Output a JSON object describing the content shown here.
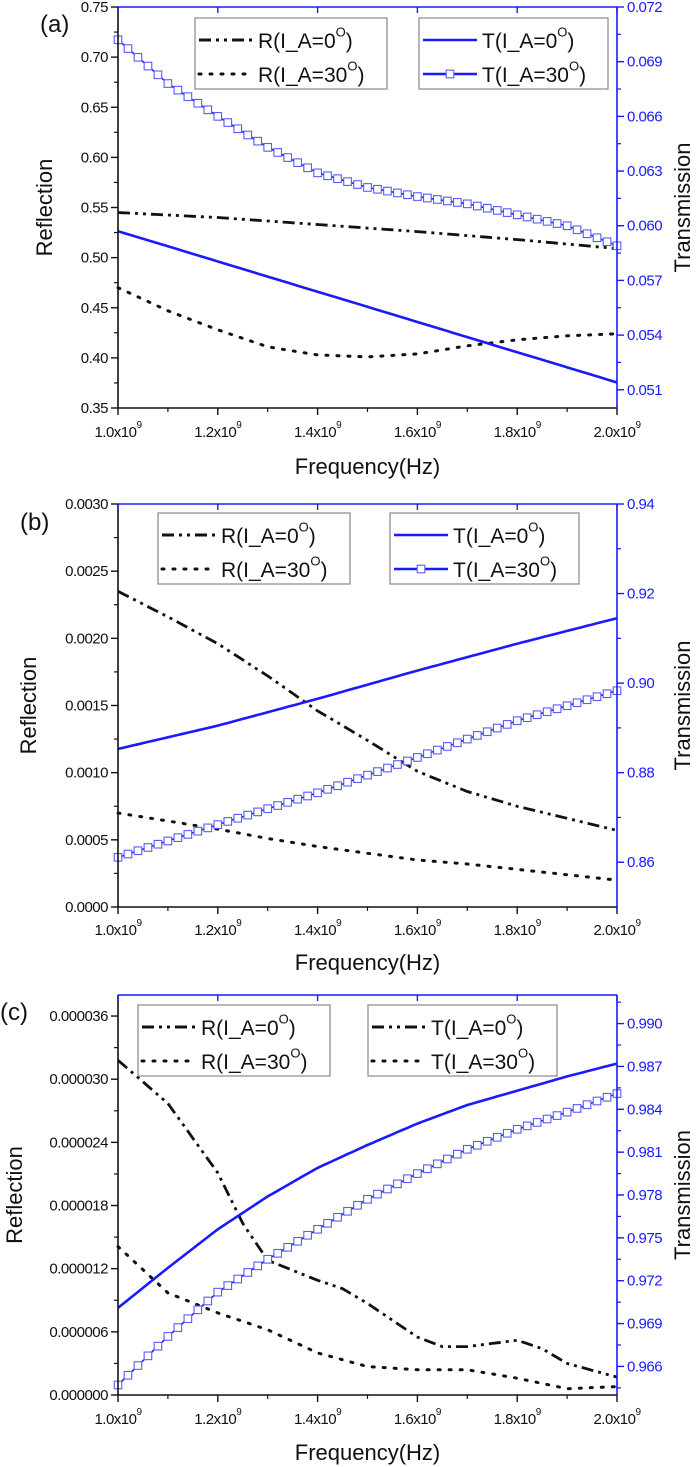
{
  "chart_data": [
    {
      "type": "line",
      "panel_label": "(a)",
      "xlabel": "Frequency(Hz)",
      "ylabel": "Reflection",
      "y2label": "Transmission",
      "xlim": [
        1.0,
        2.0
      ],
      "ylim": [
        0.35,
        0.75
      ],
      "y2lim": [
        0.05,
        0.072
      ],
      "xticks": [
        1.0,
        1.2,
        1.4,
        1.6,
        1.8,
        2.0
      ],
      "xtick_labels": [
        "1.0x10^9",
        "1.2x10^9",
        "1.4x10^9",
        "1.6x10^9",
        "1.8x10^9",
        "2.0x10^9"
      ],
      "yticks": [
        0.35,
        0.4,
        0.45,
        0.5,
        0.55,
        0.6,
        0.65,
        0.7,
        0.75
      ],
      "ytick_labels": [
        "0.35",
        "0.40",
        "0.45",
        "0.50",
        "0.55",
        "0.60",
        "0.65",
        "0.70",
        "0.75"
      ],
      "y2ticks": [
        0.051,
        0.054,
        0.057,
        0.06,
        0.063,
        0.066,
        0.069,
        0.072
      ],
      "y2tick_labels": [
        "0.051",
        "0.054",
        "0.057",
        "0.060",
        "0.063",
        "0.066",
        "0.069",
        "0.072"
      ],
      "x_unit_note": "x values in units of 1x10^9 Hz",
      "legends": [
        {
          "placement": "top-center",
          "entries": [
            {
              "label": "R(I_A=0^O)",
              "style": "dashdotdot"
            },
            {
              "label": "R(I_A=30^O)",
              "style": "dot"
            }
          ]
        },
        {
          "placement": "top-right",
          "entries": [
            {
              "label": "T(I_A=0^O)",
              "style": "solid-blue"
            },
            {
              "label": "T(I_A=30^O)",
              "style": "square-blue"
            }
          ]
        }
      ],
      "series": [
        {
          "name": "R(I_A=0^O)",
          "axis": "left",
          "style": "dashdotdot",
          "x": [
            1.0,
            1.2,
            1.4,
            1.6,
            1.8,
            2.0
          ],
          "y": [
            0.545,
            0.54,
            0.533,
            0.526,
            0.518,
            0.509
          ]
        },
        {
          "name": "R(I_A=30^O)",
          "axis": "left",
          "style": "dot",
          "x": [
            1.0,
            1.1,
            1.2,
            1.3,
            1.4,
            1.5,
            1.6,
            1.7,
            1.8,
            1.9,
            2.0
          ],
          "y": [
            0.47,
            0.447,
            0.428,
            0.411,
            0.403,
            0.401,
            0.404,
            0.412,
            0.418,
            0.422,
            0.424
          ]
        },
        {
          "name": "T(I_A=0^O)",
          "axis": "right",
          "style": "solid-blue",
          "x": [
            1.0,
            2.0
          ],
          "y": [
            0.0597,
            0.0514
          ]
        },
        {
          "name": "T(I_A=30^O)",
          "axis": "right",
          "style": "square-blue",
          "x": [
            1.0,
            1.1,
            1.2,
            1.3,
            1.4,
            1.5,
            1.6,
            1.7,
            1.8,
            1.9,
            2.0
          ],
          "y": [
            0.0702,
            0.0678,
            0.066,
            0.0643,
            0.0629,
            0.0621,
            0.0616,
            0.0612,
            0.0606,
            0.06,
            0.0589
          ]
        }
      ]
    },
    {
      "type": "line",
      "panel_label": "(b)",
      "xlabel": "Frequency(Hz)",
      "ylabel": "Reflection",
      "y2label": "Transmission",
      "xlim": [
        1.0,
        2.0
      ],
      "ylim": [
        0.0,
        0.003
      ],
      "y2lim": [
        0.85,
        0.94
      ],
      "xticks": [
        1.0,
        1.2,
        1.4,
        1.6,
        1.8,
        2.0
      ],
      "xtick_labels": [
        "1.0x10^9",
        "1.2x10^9",
        "1.4x10^9",
        "1.6x10^9",
        "1.8x10^9",
        "2.0x10^9"
      ],
      "yticks": [
        0.0,
        0.0005,
        0.001,
        0.0015,
        0.002,
        0.0025,
        0.003
      ],
      "ytick_labels": [
        "0.0000",
        "0.0005",
        "0.0010",
        "0.0015",
        "0.0020",
        "0.0025",
        "0.0030"
      ],
      "y2ticks": [
        0.86,
        0.88,
        0.9,
        0.92,
        0.94
      ],
      "y2tick_labels": [
        "0.86",
        "0.88",
        "0.90",
        "0.92",
        "0.94"
      ],
      "legends": [
        {
          "placement": "top-center",
          "entries": [
            {
              "label": "R(I_A=0^O)",
              "style": "dashdotdot"
            },
            {
              "label": "R(I_A=30^O)",
              "style": "dot"
            }
          ]
        },
        {
          "placement": "top-right",
          "entries": [
            {
              "label": "T(I_A=0^O)",
              "style": "solid-blue"
            },
            {
              "label": "T(I_A=30^O)",
              "style": "square-blue"
            }
          ]
        }
      ],
      "series": [
        {
          "name": "R(I_A=0^O)",
          "axis": "left",
          "style": "dashdotdot",
          "x": [
            1.0,
            1.1,
            1.2,
            1.3,
            1.4,
            1.5,
            1.6,
            1.7,
            1.8,
            1.9,
            2.0
          ],
          "y": [
            0.00235,
            0.00216,
            0.00196,
            0.00172,
            0.00146,
            0.00124,
            0.00101,
            0.00086,
            0.00075,
            0.00066,
            0.00057
          ]
        },
        {
          "name": "R(I_A=30^O)",
          "axis": "left",
          "style": "dot",
          "x": [
            1.0,
            1.1,
            1.2,
            1.3,
            1.4,
            1.5,
            1.6,
            1.7,
            1.8,
            1.9,
            2.0
          ],
          "y": [
            0.0007,
            0.00064,
            0.00058,
            0.00051,
            0.00045,
            0.0004,
            0.00035,
            0.00032,
            0.00028,
            0.00024,
            0.0002
          ]
        },
        {
          "name": "T(I_A=0^O)",
          "axis": "right",
          "style": "solid-blue",
          "x": [
            1.0,
            1.2,
            1.4,
            1.6,
            1.8,
            2.0
          ],
          "y": [
            0.8853,
            0.8905,
            0.8965,
            0.9028,
            0.9088,
            0.9145
          ]
        },
        {
          "name": "T(I_A=30^O)",
          "axis": "right",
          "style": "square-blue",
          "x": [
            1.0,
            1.2,
            1.4,
            1.6,
            1.8,
            2.0
          ],
          "y": [
            0.8611,
            0.8684,
            0.8755,
            0.8834,
            0.8916,
            0.8983
          ]
        }
      ]
    },
    {
      "type": "line",
      "panel_label": "(c)",
      "xlabel": "Frequency(Hz)",
      "ylabel": "Reflection",
      "y2label": "Transmission",
      "xlim": [
        1.0,
        2.0
      ],
      "ylim": [
        0.0,
        3.8e-05
      ],
      "y2lim": [
        0.964,
        0.992
      ],
      "xticks": [
        1.0,
        1.2,
        1.4,
        1.6,
        1.8,
        2.0
      ],
      "xtick_labels": [
        "1.0x10^9",
        "1.2x10^9",
        "1.4x10^9",
        "1.6x10^9",
        "1.8x10^9",
        "2.0x10^9"
      ],
      "yticks": [
        0.0,
        6e-06,
        1.2e-05,
        1.8e-05,
        2.4e-05,
        3e-05,
        3.6e-05
      ],
      "ytick_labels": [
        "0.000000",
        "0.000006",
        "0.000012",
        "0.000018",
        "0.000024",
        "0.000030",
        "0.000036"
      ],
      "y2ticks": [
        0.966,
        0.969,
        0.972,
        0.975,
        0.978,
        0.981,
        0.984,
        0.987,
        0.99
      ],
      "y2tick_labels": [
        "0.966",
        "0.969",
        "0.972",
        "0.975",
        "0.978",
        "0.981",
        "0.984",
        "0.987",
        "0.990"
      ],
      "legends": [
        {
          "placement": "top-left",
          "entries": [
            {
              "label": "R(I_A=0^O)",
              "style": "dashdotdot"
            },
            {
              "label": "R(I_A=30^O)",
              "style": "dot"
            }
          ]
        },
        {
          "placement": "top-center",
          "entries": [
            {
              "label": "T(I_A=0^O)",
              "style": "dashdotdot"
            },
            {
              "label": "T(I_A=30^O)",
              "style": "dot"
            }
          ]
        }
      ],
      "series": [
        {
          "name": "R(I_A=0^O)",
          "axis": "left",
          "style": "dashdotdot",
          "x": [
            1.0,
            1.1,
            1.2,
            1.25,
            1.3,
            1.4,
            1.45,
            1.5,
            1.6,
            1.65,
            1.7,
            1.8,
            1.85,
            1.9,
            2.0
          ],
          "y": [
            3.18e-05,
            2.77e-05,
            2.11e-05,
            1.63e-05,
            1.28e-05,
            1.09e-05,
            1.01e-05,
            8.7e-06,
            5.5e-06,
            4.6e-06,
            4.6e-06,
            5.2e-06,
            4.4e-06,
            3e-06,
            1.7e-06
          ]
        },
        {
          "name": "R(I_A=30^O)",
          "axis": "left",
          "style": "dot",
          "x": [
            1.0,
            1.1,
            1.2,
            1.3,
            1.4,
            1.5,
            1.6,
            1.7,
            1.8,
            1.9,
            2.0
          ],
          "y": [
            1.41e-05,
            9.7e-06,
            7.8e-06,
            6.2e-06,
            4e-06,
            2.7e-06,
            2.4e-06,
            2.4e-06,
            1.6e-06,
            6e-07,
            8e-07
          ]
        },
        {
          "name": "T(I_A=0^O)",
          "axis": "right",
          "style": "solid-blue",
          "x": [
            1.0,
            1.1,
            1.2,
            1.3,
            1.4,
            1.5,
            1.6,
            1.7,
            1.8,
            1.9,
            2.0
          ],
          "y": [
            0.9701,
            0.9729,
            0.9756,
            0.9779,
            0.9799,
            0.9815,
            0.983,
            0.9843,
            0.9853,
            0.9863,
            0.9872
          ]
        },
        {
          "name": "T(I_A=30^O)",
          "axis": "right",
          "style": "square-blue",
          "x": [
            1.0,
            1.1,
            1.2,
            1.3,
            1.4,
            1.5,
            1.6,
            1.7,
            1.8,
            1.9,
            2.0
          ],
          "y": [
            0.9647,
            0.9681,
            0.9712,
            0.9735,
            0.9756,
            0.9777,
            0.9795,
            0.9812,
            0.9826,
            0.9838,
            0.9851
          ]
        }
      ]
    }
  ]
}
